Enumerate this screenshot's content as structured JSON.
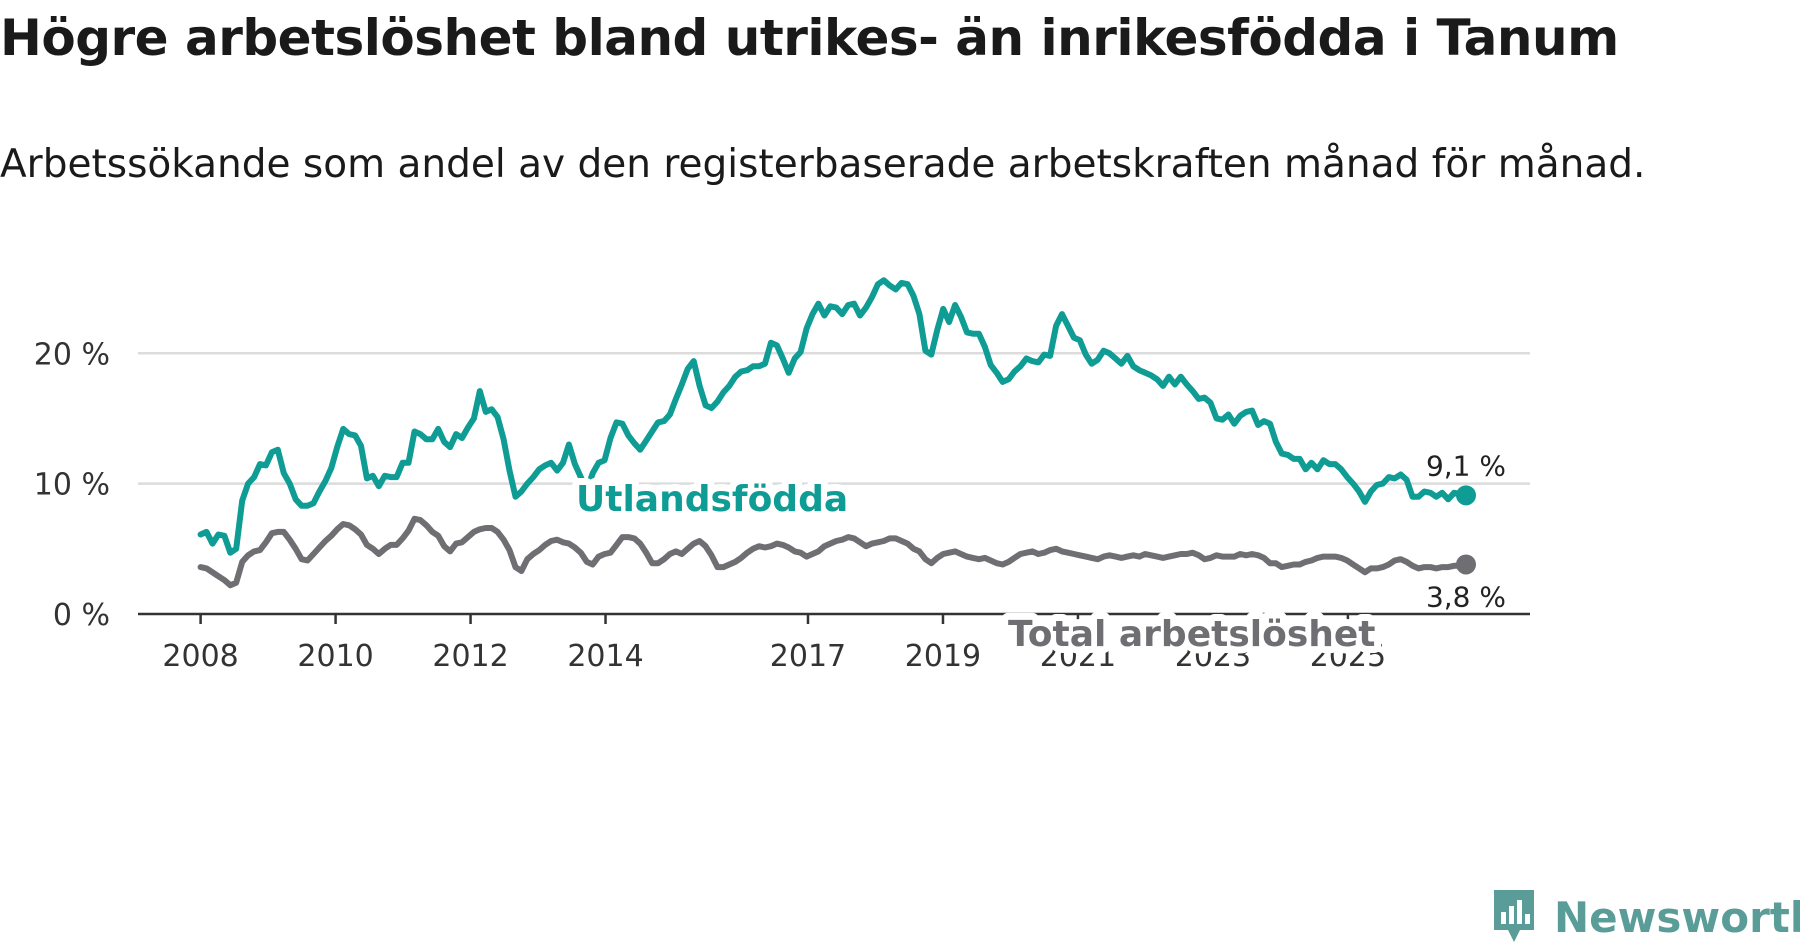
{
  "title": "Högre arbetslöshet bland utrikes- än inrikesfödda i Tanum",
  "subtitle": "Arbetssökande som andel av den registerbaserade arbetskraften månad för månad.",
  "brand": {
    "name": "Newsworthy",
    "icon": "newsworthy-logo-icon",
    "color": "#5a9c98"
  },
  "chart_data": {
    "type": "line",
    "title": "Högre arbetslöshet bland utrikes- än inrikesfödda i Tanum",
    "xlabel": "",
    "ylabel": "",
    "x_range": [
      2008.0,
      2026.75
    ],
    "ylim": [
      0,
      27
    ],
    "y_ticks": [
      0,
      10,
      20
    ],
    "y_tick_labels": [
      "0 %",
      "10 %",
      "20 %"
    ],
    "x_ticks": [
      2008,
      2010,
      2012,
      2014,
      2017,
      2019,
      2021,
      2023,
      2025
    ],
    "x_tick_labels": [
      "2008",
      "2010",
      "2012",
      "2014",
      "2017",
      "2019",
      "2021",
      "2023",
      "2025"
    ],
    "grid": true,
    "series": [
      {
        "name": "Utlandsfödda",
        "color": "#0e9c94",
        "end_label": "9,1 %",
        "x_start": 2008.0,
        "x_end": 2026.75,
        "values": [
          6.1,
          6.3,
          5.4,
          6.1,
          6.0,
          4.7,
          5.0,
          8.7,
          10.0,
          10.5,
          11.5,
          11.4,
          12.4,
          12.6,
          10.8,
          10.0,
          8.8,
          8.3,
          8.3,
          8.5,
          9.4,
          10.2,
          11.2,
          12.8,
          14.2,
          13.8,
          13.7,
          12.9,
          10.4,
          10.6,
          9.8,
          10.6,
          10.5,
          10.5,
          11.6,
          11.6,
          14.0,
          13.8,
          13.4,
          13.4,
          14.2,
          13.2,
          12.8,
          13.8,
          13.5,
          14.3,
          15.0,
          17.1,
          15.5,
          15.7,
          15.1,
          13.4,
          11.0,
          9.0,
          9.4,
          10.0,
          10.5,
          11.1,
          11.4,
          11.6,
          11.0,
          11.6,
          13.0,
          11.5,
          10.5,
          9.5,
          10.8,
          11.6,
          11.8,
          13.5,
          14.7,
          14.6,
          13.7,
          13.1,
          12.6,
          13.3,
          14.0,
          14.7,
          14.8,
          15.3,
          16.5,
          17.6,
          18.8,
          19.4,
          17.5,
          16.0,
          15.8,
          16.3,
          17.0,
          17.5,
          18.2,
          18.6,
          18.7,
          19.0,
          19.0,
          19.2,
          20.8,
          20.6,
          19.6,
          18.5,
          19.6,
          20.1,
          21.9,
          23.0,
          23.8,
          22.9,
          23.6,
          23.5,
          23.0,
          23.7,
          23.8,
          22.9,
          23.5,
          24.3,
          25.3,
          25.6,
          25.2,
          24.9,
          25.4,
          25.3,
          24.4,
          23.0,
          20.2,
          19.9,
          21.8,
          23.4,
          22.4,
          23.7,
          22.8,
          21.6,
          21.5,
          21.5,
          20.5,
          19.1,
          18.5,
          17.8,
          18.0,
          18.6,
          19.0,
          19.6,
          19.4,
          19.3,
          19.9,
          19.8,
          22.1,
          23.0,
          22.1,
          21.2,
          21.0,
          19.9,
          19.2,
          19.5,
          20.2,
          20.0,
          19.6,
          19.2,
          19.8,
          19.0,
          18.7,
          18.5,
          18.3,
          18.0,
          17.5,
          18.2,
          17.6,
          18.2,
          17.6,
          17.1,
          16.5,
          16.6,
          16.2,
          15.0,
          14.9,
          15.3,
          14.6,
          15.2,
          15.5,
          15.6,
          14.5,
          14.8,
          14.6,
          13.2,
          12.3,
          12.2,
          11.9,
          11.9,
          11.1,
          11.6,
          11.1,
          11.8,
          11.5,
          11.5,
          11.1,
          10.5,
          10.0,
          9.4,
          8.6,
          9.4,
          9.9,
          10.0,
          10.5,
          10.4,
          10.7,
          10.3,
          9.0,
          9.0,
          9.4,
          9.3,
          9.0,
          9.3,
          8.8,
          9.3,
          9.2,
          9.1
        ]
      },
      {
        "name": "Total arbetslöshet",
        "color": "#6f6f73",
        "end_label": "3,8 %",
        "x_start": 2008.0,
        "x_end": 2026.75,
        "values": [
          3.6,
          3.5,
          3.2,
          2.9,
          2.6,
          2.2,
          2.4,
          4.0,
          4.5,
          4.8,
          4.9,
          5.5,
          6.2,
          6.3,
          6.3,
          5.7,
          5.0,
          4.2,
          4.1,
          4.6,
          5.1,
          5.6,
          6.0,
          6.5,
          6.9,
          6.8,
          6.5,
          6.1,
          5.3,
          5.0,
          4.6,
          5.0,
          5.3,
          5.3,
          5.8,
          6.4,
          7.3,
          7.2,
          6.8,
          6.3,
          6.0,
          5.2,
          4.8,
          5.4,
          5.5,
          5.9,
          6.3,
          6.5,
          6.6,
          6.6,
          6.3,
          5.7,
          4.9,
          3.6,
          3.3,
          4.2,
          4.6,
          4.9,
          5.3,
          5.6,
          5.7,
          5.5,
          5.4,
          5.1,
          4.7,
          4.0,
          3.8,
          4.4,
          4.6,
          4.7,
          5.3,
          5.9,
          5.9,
          5.8,
          5.4,
          4.7,
          3.9,
          3.9,
          4.2,
          4.6,
          4.8,
          4.6,
          5.0,
          5.4,
          5.6,
          5.2,
          4.5,
          3.6,
          3.6,
          3.8,
          4.0,
          4.3,
          4.7,
          5.0,
          5.2,
          5.1,
          5.2,
          5.4,
          5.3,
          5.1,
          4.8,
          4.7,
          4.4,
          4.6,
          4.8,
          5.2,
          5.4,
          5.6,
          5.7,
          5.9,
          5.8,
          5.5,
          5.2,
          5.4,
          5.5,
          5.6,
          5.8,
          5.8,
          5.6,
          5.4,
          5.0,
          4.8,
          4.2,
          3.9,
          4.3,
          4.6,
          4.7,
          4.8,
          4.6,
          4.4,
          4.3,
          4.2,
          4.3,
          4.1,
          3.9,
          3.8,
          4.0,
          4.3,
          4.6,
          4.7,
          4.8,
          4.6,
          4.7,
          4.9,
          5.0,
          4.8,
          4.7,
          4.6,
          4.5,
          4.4,
          4.3,
          4.2,
          4.4,
          4.5,
          4.4,
          4.3,
          4.4,
          4.5,
          4.4,
          4.6,
          4.5,
          4.4,
          4.3,
          4.4,
          4.5,
          4.6,
          4.6,
          4.7,
          4.5,
          4.2,
          4.3,
          4.5,
          4.4,
          4.4,
          4.4,
          4.6,
          4.5,
          4.6,
          4.5,
          4.3,
          3.9,
          3.9,
          3.6,
          3.7,
          3.8,
          3.8,
          4.0,
          4.1,
          4.3,
          4.4,
          4.4,
          4.4,
          4.3,
          4.1,
          3.8,
          3.5,
          3.2,
          3.5,
          3.5,
          3.6,
          3.8,
          4.1,
          4.2,
          4.0,
          3.7,
          3.5,
          3.6,
          3.6,
          3.5,
          3.6,
          3.6,
          3.7,
          3.7,
          3.8
        ]
      }
    ]
  }
}
